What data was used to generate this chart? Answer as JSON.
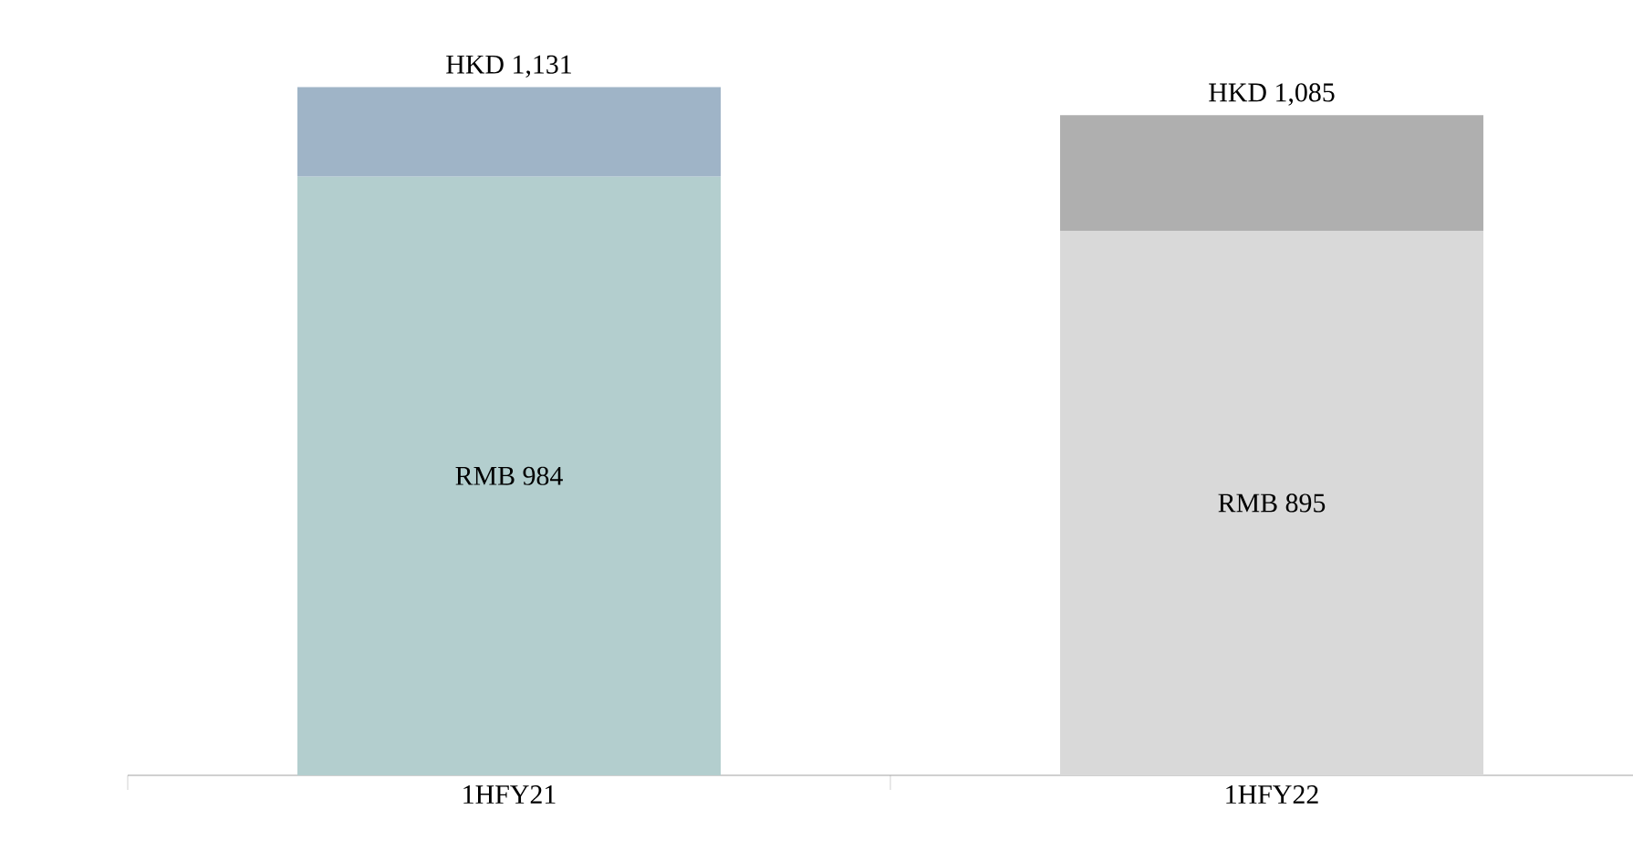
{
  "chart_data": {
    "type": "bar",
    "stacked": true,
    "categories": [
      "1HFY21",
      "1HFY22"
    ],
    "series": [
      {
        "values": [
          984,
          895
        ],
        "colors": [
          "#b3cece",
          "#d9d9d9"
        ],
        "value_labels": [
          "RMB 984",
          "RMB 895"
        ]
      },
      {
        "values": [
          147,
          190
        ],
        "colors": [
          "#9fb4c7",
          "#afafaf"
        ]
      }
    ],
    "totals": [
      "HKD 1,131",
      "HKD 1,085"
    ]
  }
}
